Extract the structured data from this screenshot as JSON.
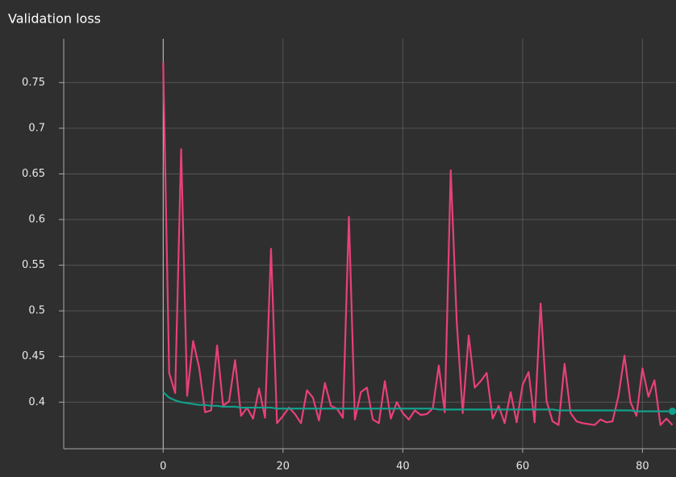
{
  "chart_data": {
    "type": "line",
    "title": "Validation loss",
    "x": [
      0,
      1,
      2,
      3,
      4,
      5,
      6,
      7,
      8,
      9,
      10,
      11,
      12,
      13,
      14,
      15,
      16,
      17,
      18,
      19,
      20,
      21,
      22,
      23,
      24,
      25,
      26,
      27,
      28,
      29,
      30,
      31,
      32,
      33,
      34,
      35,
      36,
      37,
      38,
      39,
      40,
      41,
      42,
      43,
      44,
      45,
      46,
      47,
      48,
      49,
      50,
      51,
      52,
      53,
      54,
      55,
      56,
      57,
      58,
      59,
      60,
      61,
      62,
      63,
      64,
      65,
      66,
      67,
      68,
      69,
      70,
      71,
      72,
      73,
      74,
      75,
      76,
      77,
      78,
      79,
      80,
      81,
      82,
      83,
      84,
      85
    ],
    "series": [
      {
        "color": "#e8407a",
        "values": [
          0.772,
          0.432,
          0.41,
          0.677,
          0.407,
          0.467,
          0.438,
          0.389,
          0.391,
          0.462,
          0.396,
          0.401,
          0.446,
          0.385,
          0.394,
          0.382,
          0.415,
          0.383,
          0.568,
          0.377,
          0.385,
          0.394,
          0.387,
          0.377,
          0.413,
          0.405,
          0.38,
          0.421,
          0.396,
          0.393,
          0.383,
          0.603,
          0.381,
          0.411,
          0.416,
          0.381,
          0.377,
          0.423,
          0.382,
          0.4,
          0.388,
          0.381,
          0.391,
          0.386,
          0.387,
          0.393,
          0.44,
          0.389,
          0.654,
          0.488,
          0.388,
          0.473,
          0.416,
          0.423,
          0.432,
          0.382,
          0.396,
          0.377,
          0.411,
          0.378,
          0.419,
          0.433,
          0.378,
          0.508,
          0.401,
          0.379,
          0.375,
          0.442,
          0.388,
          0.379,
          0.377,
          0.376,
          0.375,
          0.381,
          0.378,
          0.379,
          0.407,
          0.451,
          0.4,
          0.385,
          0.437,
          0.406,
          0.424,
          0.375,
          0.382,
          0.375
        ]
      },
      {
        "color": "#12a08c",
        "values": [
          0.411,
          0.405,
          0.402,
          0.4,
          0.399,
          0.398,
          0.397,
          0.397,
          0.396,
          0.396,
          0.395,
          0.395,
          0.395,
          0.394,
          0.394,
          0.394,
          0.394,
          0.394,
          0.394,
          0.393,
          0.393,
          0.393,
          0.393,
          0.393,
          0.393,
          0.393,
          0.393,
          0.393,
          0.393,
          0.393,
          0.393,
          0.393,
          0.393,
          0.393,
          0.393,
          0.393,
          0.393,
          0.393,
          0.393,
          0.393,
          0.393,
          0.393,
          0.393,
          0.393,
          0.393,
          0.393,
          0.392,
          0.392,
          0.392,
          0.392,
          0.392,
          0.392,
          0.392,
          0.392,
          0.392,
          0.392,
          0.392,
          0.392,
          0.392,
          0.392,
          0.392,
          0.392,
          0.392,
          0.392,
          0.392,
          0.392,
          0.391,
          0.391,
          0.391,
          0.391,
          0.391,
          0.391,
          0.391,
          0.391,
          0.391,
          0.391,
          0.391,
          0.391,
          0.391,
          0.39,
          0.39,
          0.39,
          0.39,
          0.39,
          0.39,
          0.39
        ]
      }
    ],
    "xlim": [
      -16.6,
      85.6
    ],
    "ylim": [
      0.349,
      0.798
    ],
    "xticks": [
      0,
      20,
      40,
      60,
      80
    ],
    "yticks": [
      0.4,
      0.45,
      0.5,
      0.55,
      0.6,
      0.65,
      0.7,
      0.75
    ],
    "grid": true
  }
}
